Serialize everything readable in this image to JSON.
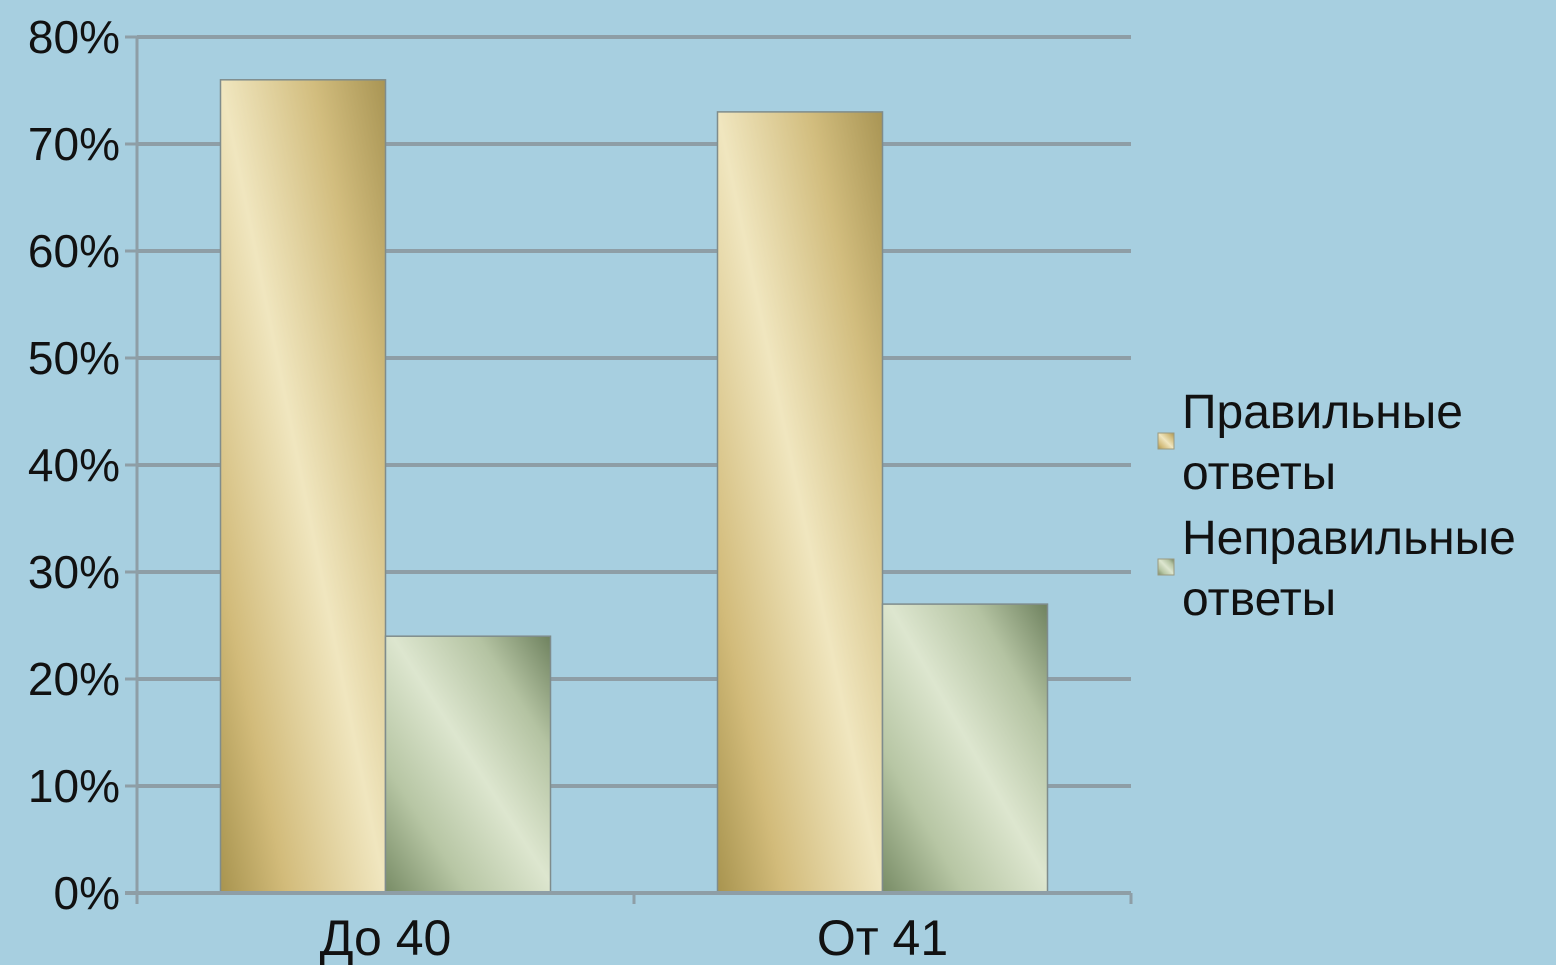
{
  "chart_data": {
    "type": "bar",
    "title": "",
    "xlabel": "",
    "ylabel": "",
    "categories": [
      "До 40",
      "От 41"
    ],
    "series": [
      {
        "name": "Правильные ответы",
        "legend_lines": [
          "Правильные",
          "ответы"
        ],
        "values": [
          0.76,
          0.73
        ],
        "color": "#d9c68a"
      },
      {
        "name": "Неправильные ответы",
        "legend_lines": [
          "Неправильные",
          "ответы"
        ],
        "values": [
          0.24,
          0.27
        ],
        "color": "#c7d4b8"
      }
    ],
    "ylim": [
      0,
      0.8
    ],
    "yticks": [
      0,
      0.1,
      0.2,
      0.3,
      0.4,
      0.5,
      0.6,
      0.7,
      0.8
    ],
    "ytick_labels": [
      "0%",
      "10%",
      "20%",
      "30%",
      "40%",
      "50%",
      "60%",
      "70%",
      "80%"
    ],
    "grid": true,
    "legend_position": "right"
  },
  "colors": {
    "background": "#a7cfe0",
    "gridline": "#8e9ea6",
    "axis": "#8e9ea6"
  }
}
